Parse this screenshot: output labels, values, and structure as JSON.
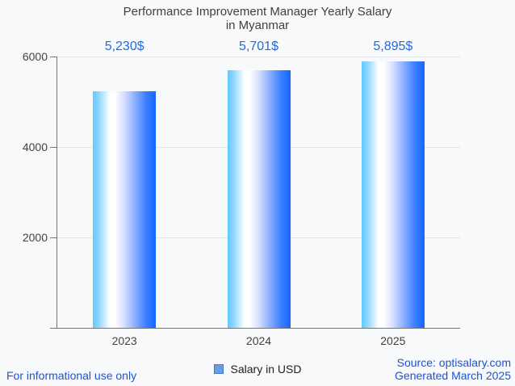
{
  "title": {
    "line1": "Performance Improvement Manager Yearly Salary",
    "line2": "in Myanmar"
  },
  "chart_data": {
    "type": "bar",
    "title": "Performance Improvement Manager Yearly Salary in Myanmar",
    "categories": [
      "2023",
      "2024",
      "2025"
    ],
    "values": [
      5230,
      5701,
      5895
    ],
    "value_labels": [
      "5,230$",
      "5,701$",
      "5,895$"
    ],
    "series_name": "Salary in USD",
    "xlabel": "",
    "ylabel": "",
    "ylim": [
      0,
      6000
    ],
    "yticks": [
      2000,
      4000,
      6000
    ],
    "grid": true,
    "legend_position": "bottom",
    "colors": {
      "bar_gradient_left": "#63c8ff",
      "bar_gradient_mid": "#ffffff",
      "bar_gradient_right": "#1566ff",
      "value_label": "#1e6be8",
      "axis_text": "#424242",
      "gridline": "#e3e3e3",
      "axis_line": "#767676"
    }
  },
  "legend": {
    "label": "Salary in USD",
    "marker_color": "#679fe0",
    "marker_border": "#4678bf"
  },
  "footer": {
    "left": "For informational use only",
    "source": "Source: optisalary.com",
    "generated": "Generated March 2025",
    "text_color": "#1b53d8"
  }
}
